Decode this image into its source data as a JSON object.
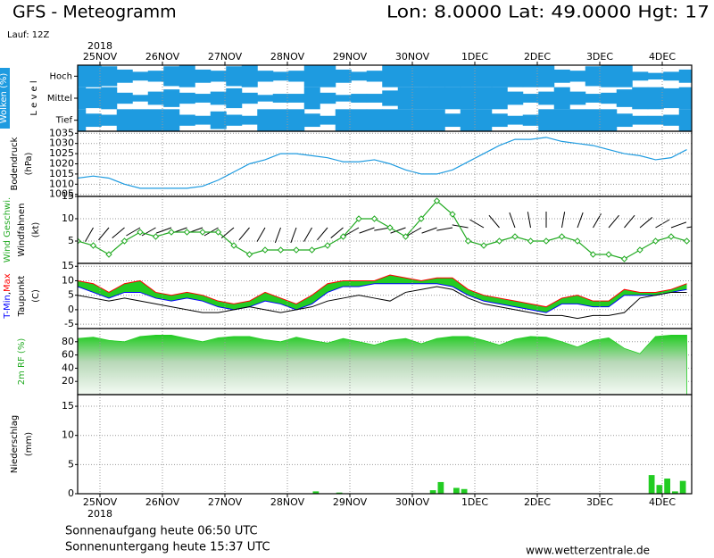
{
  "header": {
    "title": "GFS - Meteogramm",
    "location": "Lon: 8.0000 Lat: 49.0000 Hgt: 17",
    "run": "Lauf: 12Z"
  },
  "time_axis": {
    "year": "2018",
    "days": [
      "25NOV",
      "26NOV",
      "27NOV",
      "28NOV",
      "29NOV",
      "30NOV",
      "1DEC",
      "2DEC",
      "3DEC",
      "4DEC"
    ]
  },
  "footer": {
    "sunrise": "Sonnenaufgang heute 06:50 UTC",
    "sunset": "Sonnenuntergang heute 15:37 UTC",
    "source": "www.wetterzentrale.de"
  },
  "chart_data": [
    {
      "type": "cloud",
      "ylabel_lines": [
        [
          {
            "text": "Wolken (%)",
            "color": "#ffffff",
            "background": "#1e9be0"
          }
        ],
        [
          {
            "text": "L e v e l",
            "color": "#000000"
          }
        ]
      ],
      "series": [
        {
          "name": "Hoch",
          "color": "#1e9be0",
          "values": [
            100,
            100,
            90,
            60,
            40,
            50,
            90,
            100,
            60,
            50,
            90,
            100,
            50,
            40,
            50,
            100,
            100,
            60,
            40,
            50,
            100,
            100,
            100,
            100,
            100,
            100,
            100,
            100,
            100,
            100,
            100,
            60,
            50,
            90,
            100,
            100,
            40,
            30,
            40,
            60
          ]
        },
        {
          "name": "Mittel",
          "color": "#1e9be0",
          "values": [
            100,
            90,
            100,
            50,
            30,
            60,
            80,
            50,
            40,
            60,
            90,
            50,
            30,
            40,
            40,
            100,
            50,
            30,
            40,
            40,
            70,
            100,
            100,
            100,
            100,
            100,
            100,
            100,
            60,
            40,
            60,
            100,
            60,
            40,
            50,
            80,
            100,
            100,
            90,
            100
          ]
        },
        {
          "name": "Tief",
          "color": "#1e9be0",
          "values": [
            100,
            60,
            50,
            100,
            100,
            100,
            100,
            50,
            40,
            80,
            50,
            40,
            100,
            100,
            100,
            60,
            40,
            100,
            100,
            100,
            100,
            100,
            100,
            100,
            60,
            100,
            100,
            60,
            40,
            50,
            100,
            100,
            100,
            100,
            100,
            60,
            40,
            40,
            50,
            100
          ]
        }
      ]
    },
    {
      "type": "line",
      "ylabel_lines": [
        [
          {
            "text": "Bodendruck",
            "color": "#000000"
          }
        ],
        [
          {
            "text": "(hPa)",
            "color": "#000000"
          }
        ]
      ],
      "ylim": [
        1004,
        1036
      ],
      "yticks": [
        1005,
        1010,
        1015,
        1020,
        1025,
        1030,
        1035
      ],
      "grid": true,
      "series": [
        {
          "color": "#1e9be0",
          "values": [
            1013,
            1014,
            1013,
            1010,
            1008,
            1008,
            1008,
            1008,
            1009,
            1012,
            1016,
            1020,
            1022,
            1025,
            1025,
            1024,
            1023,
            1021,
            1021,
            1022,
            1020,
            1017,
            1015,
            1015,
            1017,
            1021,
            1025,
            1029,
            1032,
            1032,
            1033,
            1031,
            1030,
            1029,
            1027,
            1025,
            1024,
            1022,
            1023,
            1027
          ]
        }
      ]
    },
    {
      "type": "wind",
      "ylabel_lines": [
        [
          {
            "text": "Wind Geschwi.",
            "color": "#22aa22"
          }
        ],
        [
          {
            "text": "Windfahnen",
            "color": "#000000"
          }
        ],
        [
          {
            "text": "(kt)",
            "color": "#000000"
          }
        ]
      ],
      "ylim": [
        0,
        15
      ],
      "yticks": [
        5,
        10,
        15
      ],
      "grid": true,
      "series": [
        {
          "color": "#22aa22",
          "values": [
            5,
            4,
            2,
            5,
            7,
            6,
            7,
            7,
            7,
            7,
            4,
            2,
            3,
            3,
            3,
            3,
            4,
            6,
            10,
            10,
            8,
            6,
            10,
            14,
            11,
            5,
            4,
            5,
            6,
            5,
            5,
            6,
            5,
            2,
            2,
            1,
            3,
            5,
            6,
            5
          ]
        }
      ],
      "directions": {
        "color": "#000000",
        "values": [
          200,
          210,
          220,
          230,
          240,
          240,
          250,
          250,
          250,
          240,
          230,
          220,
          210,
          200,
          200,
          210,
          220,
          230,
          240,
          250,
          260,
          250,
          240,
          250,
          260,
          280,
          300,
          320,
          340,
          350,
          0,
          10,
          20,
          30,
          40,
          40,
          50,
          60,
          70,
          80
        ]
      }
    },
    {
      "type": "temperature",
      "ylabel_lines": [
        [
          {
            "text": "T-Min",
            "color": "#0000ff"
          },
          {
            "text": ",",
            "color": "#000000"
          },
          {
            "text": "Max",
            "color": "#ff0000"
          }
        ],
        [
          {
            "text": "Taupunkt",
            "color": "#000000"
          }
        ],
        [
          {
            "text": "(C)",
            "color": "#000000"
          }
        ]
      ],
      "ylim": [
        -6.5,
        16
      ],
      "yticks": [
        -5,
        0,
        5,
        10,
        15
      ],
      "grid": true,
      "band_color": "#22cc22",
      "series": [
        {
          "color": "#ff0000",
          "values": [
            10,
            9,
            6,
            9,
            10,
            6,
            5,
            6,
            5,
            3,
            2,
            3,
            6,
            4,
            2,
            5,
            9,
            10,
            10,
            10,
            12,
            11,
            10,
            11,
            11,
            7,
            5,
            4,
            3,
            2,
            1,
            4,
            5,
            3,
            3,
            7,
            6,
            6,
            7,
            9
          ]
        },
        {
          "color": "#0000ff",
          "values": [
            8,
            6,
            4,
            6,
            6,
            4,
            3,
            4,
            3,
            1,
            0,
            1,
            3,
            2,
            0,
            2,
            6,
            8,
            8,
            9,
            9,
            9,
            9,
            9,
            8,
            5,
            3,
            2,
            1,
            0,
            -1,
            2,
            2,
            1,
            1,
            5,
            5,
            5,
            6,
            7
          ]
        },
        {
          "color": "#000000",
          "values": [
            5,
            4,
            3,
            4,
            3,
            2,
            1,
            0,
            -1,
            -1,
            0,
            1,
            0,
            -1,
            0,
            1,
            3,
            4,
            5,
            4,
            3,
            6,
            7,
            8,
            7,
            4,
            2,
            1,
            0,
            -1,
            -2,
            -2,
            -3,
            -2,
            -2,
            -1,
            4,
            5,
            6,
            6
          ]
        }
      ]
    },
    {
      "type": "area",
      "ylabel_lines": [
        [
          {
            "text": "2m RF (%)",
            "color": "#22aa22"
          }
        ]
      ],
      "ylim": [
        0,
        100
      ],
      "yticks": [
        20,
        40,
        60,
        80
      ],
      "grid": true,
      "series": [
        {
          "color": "#22cc22",
          "values": [
            85,
            87,
            82,
            80,
            88,
            90,
            90,
            85,
            80,
            86,
            88,
            88,
            83,
            80,
            87,
            82,
            78,
            85,
            80,
            75,
            82,
            85,
            77,
            85,
            88,
            88,
            82,
            75,
            84,
            88,
            87,
            80,
            72,
            82,
            86,
            70,
            62,
            88,
            90,
            90
          ]
        }
      ]
    },
    {
      "type": "bar",
      "ylabel_lines": [
        [
          {
            "text": "Niederschlag",
            "color": "#000000"
          }
        ],
        [
          {
            "text": "(mm)",
            "color": "#000000"
          }
        ]
      ],
      "ylim": [
        0,
        17
      ],
      "yticks": [
        0,
        5,
        10,
        15
      ],
      "grid": true,
      "series": [
        {
          "color": "#22cc22",
          "values": [
            0,
            0,
            0,
            0,
            0,
            0,
            0,
            0,
            0,
            0,
            0,
            0,
            0,
            0,
            0,
            0,
            0,
            0,
            0,
            0,
            0,
            0,
            0,
            0,
            0,
            0,
            0,
            0,
            0,
            0,
            0.4,
            0,
            0,
            0.2,
            0,
            0,
            0,
            0,
            0,
            0,
            0,
            0,
            0,
            0,
            0,
            0.6,
            2.0,
            0,
            1.0,
            0.8,
            0,
            0,
            0,
            0,
            0,
            0,
            0,
            0,
            0,
            0,
            0,
            0,
            0,
            0,
            0,
            0,
            0,
            0,
            0,
            0,
            0,
            0,
            0,
            3.2,
            1.5,
            2.6,
            0.4,
            2.2,
            0
          ]
        }
      ]
    }
  ]
}
